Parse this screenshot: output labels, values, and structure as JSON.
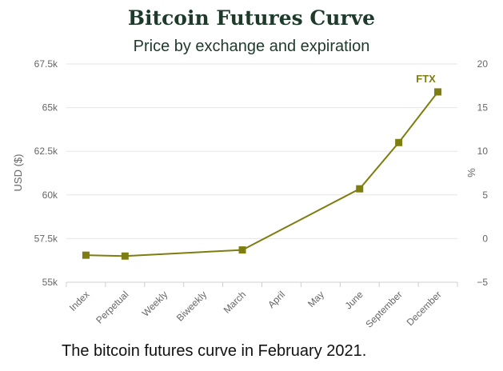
{
  "chart_data": {
    "type": "line",
    "title": "Bitcoin Futures Curve",
    "subtitle": "Price by exchange and expiration",
    "caption": "The bitcoin futures curve in February 2021.",
    "ylabel": "USD ($)",
    "y2label": "%",
    "categories": [
      "Index",
      "Perpetual",
      "Weekly",
      "Biweekly",
      "March",
      "April",
      "May",
      "June",
      "September",
      "December"
    ],
    "ylim": [
      55000,
      67500
    ],
    "yticks": [
      55000,
      57500,
      60000,
      62500,
      65000,
      67500
    ],
    "yticklabels": [
      "55k",
      "57.5k",
      "60k",
      "62.5k",
      "65k",
      "67.5k"
    ],
    "y2lim": [
      -5,
      20
    ],
    "y2ticks": [
      -5,
      0,
      5,
      10,
      15,
      20
    ],
    "y2ticklabels": [
      "−5",
      "0",
      "5",
      "10",
      "15",
      "20"
    ],
    "grid": true,
    "series": [
      {
        "name": "FTX",
        "color": "#7d7d10",
        "points": [
          {
            "category": "Index",
            "value": 56550
          },
          {
            "category": "Perpetual",
            "value": 56500
          },
          {
            "category": "March",
            "value": 56850
          },
          {
            "category": "June",
            "value": 60350
          },
          {
            "category": "September",
            "value": 63000
          },
          {
            "category": "December",
            "value": 65900
          }
        ]
      }
    ]
  }
}
